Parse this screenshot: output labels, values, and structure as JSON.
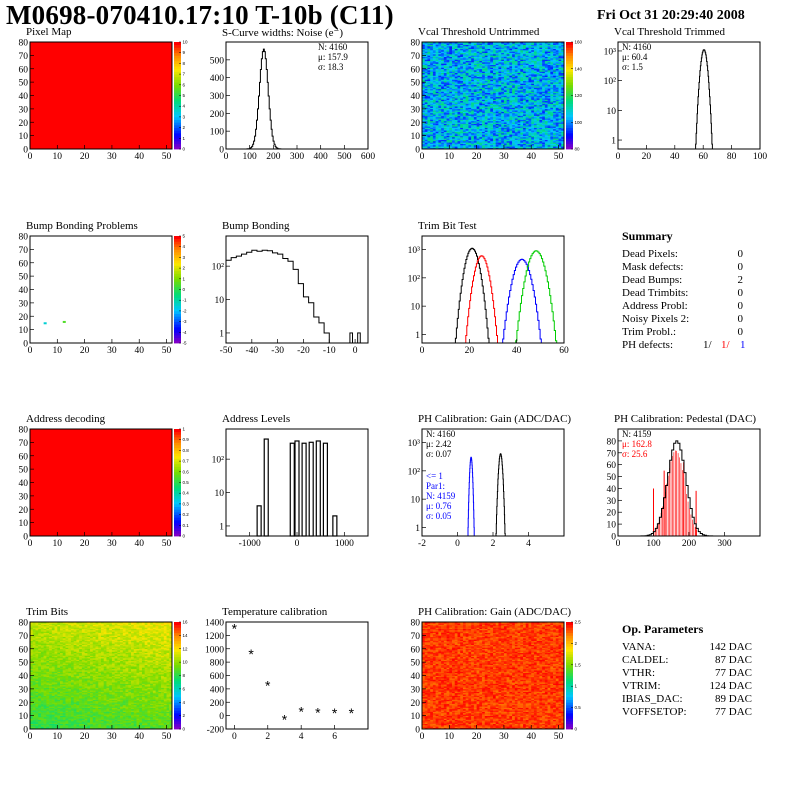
{
  "header": {
    "title": "M0698-070410.17:10 T-10b (C11)",
    "date": "Fri Oct 31 20:29:40 2008"
  },
  "colors": {
    "histogram": "#000000",
    "red": "#ff0000",
    "blue": "#0000ff",
    "green": "#00cc00"
  },
  "chart_data": [
    {
      "type": "heatmap",
      "title": "Pixel Map",
      "xlim": [
        0,
        52
      ],
      "ylim": [
        0,
        80
      ],
      "xticks": [
        "0",
        "10",
        "20",
        "30",
        "40",
        "50"
      ],
      "yticks": [
        "0",
        "10",
        "20",
        "30",
        "40",
        "50",
        "60",
        "70",
        "80"
      ],
      "palette_ticks": [
        "0",
        "1",
        "2",
        "3",
        "4",
        "5",
        "6",
        "7",
        "8",
        "9",
        "10"
      ],
      "fill": "uniform",
      "level": 10
    },
    {
      "type": "histogram",
      "title": "S-Curve widths: Noise (e⁻)",
      "xlim": [
        0,
        600
      ],
      "ylim": [
        0,
        600
      ],
      "xticks": [
        "0",
        "100",
        "200",
        "300",
        "400",
        "500",
        "600"
      ],
      "yticks": [
        "0",
        "100",
        "200",
        "300",
        "400",
        "500"
      ],
      "stats": [
        "N: 4160",
        "μ: 157.9",
        "σ: 18.3"
      ],
      "gaussian": {
        "mean": 157.9,
        "sigma": 18.3,
        "peak": 560
      }
    },
    {
      "type": "heatmap",
      "title": "Vcal Threshold Untrimmed",
      "xlim": [
        0,
        52
      ],
      "ylim": [
        0,
        80
      ],
      "xticks": [
        "0",
        "10",
        "20",
        "30",
        "40",
        "50"
      ],
      "yticks": [
        "0",
        "10",
        "20",
        "30",
        "40",
        "50",
        "60",
        "70",
        "80"
      ],
      "palette_ticks": [
        "80",
        "100",
        "120",
        "140",
        "160"
      ],
      "fill": "noise",
      "level_range": [
        0.15,
        0.45
      ]
    },
    {
      "type": "histogram",
      "title": "Vcal Threshold Trimmed",
      "log_y": true,
      "xlim": [
        0,
        100
      ],
      "ylim": [
        0.5,
        2000
      ],
      "xticks": [
        "0",
        "20",
        "40",
        "60",
        "80",
        "100"
      ],
      "yticks": [
        "1",
        "10",
        "10²",
        "10³"
      ],
      "stats": [
        "N: 4160",
        "μ: 60.4",
        "σ:  1.5"
      ],
      "gaussian": {
        "mean": 60.4,
        "sigma": 1.5,
        "peak": 1100
      }
    },
    {
      "type": "heatmap",
      "title": "Bump Bonding Problems",
      "xlim": [
        0,
        52
      ],
      "ylim": [
        0,
        80
      ],
      "xticks": [
        "0",
        "10",
        "20",
        "30",
        "40",
        "50"
      ],
      "yticks": [
        "0",
        "10",
        "20",
        "30",
        "40",
        "50",
        "60",
        "70",
        "80"
      ],
      "palette_ticks": [
        "-5",
        "-4",
        "-3",
        "-2",
        "-1",
        "0",
        "1",
        "2",
        "3",
        "4",
        "5"
      ],
      "fill": "empty",
      "cells": [
        {
          "x": 5,
          "y": 14,
          "level": 0.35
        },
        {
          "x": 12,
          "y": 15,
          "level": 0.55
        }
      ]
    },
    {
      "type": "histogram",
      "title": "Bump Bonding",
      "log_y": true,
      "xlim": [
        -50,
        5
      ],
      "ylim": [
        0.5,
        800
      ],
      "xticks": [
        "-50",
        "-40",
        "-30",
        "-20",
        "-10",
        "0"
      ],
      "yticks": [
        "1",
        "10",
        "10²"
      ],
      "bins_x": [
        -50,
        -48,
        -46,
        -44,
        -42,
        -40,
        -38,
        -36,
        -34,
        -32,
        -30,
        -28,
        -26,
        -24,
        -22,
        -20,
        -18,
        -16,
        -14,
        -12,
        -10
      ],
      "bins_y": [
        150,
        180,
        200,
        230,
        260,
        300,
        280,
        300,
        290,
        250,
        230,
        170,
        140,
        80,
        30,
        12,
        8,
        3,
        2,
        1,
        0
      ],
      "outliers": [
        {
          "x": -2,
          "y": 1
        },
        {
          "x": 1,
          "y": 1
        }
      ]
    },
    {
      "type": "histogram",
      "title": "Trim Bit Test",
      "log_y": true,
      "xlim": [
        0,
        60
      ],
      "ylim": [
        0.5,
        3000
      ],
      "xticks": [
        "0",
        "20",
        "40",
        "60"
      ],
      "yticks": [
        "1",
        "10",
        "10²",
        "10³"
      ],
      "series": [
        {
          "color": "black",
          "gaussian": {
            "mean": 21,
            "sigma": 1.8,
            "peak": 1100
          }
        },
        {
          "color": "red",
          "gaussian": {
            "mean": 25,
            "sigma": 1.8,
            "peak": 600
          }
        },
        {
          "color": "blue",
          "gaussian": {
            "mean": 42,
            "sigma": 2.2,
            "peak": 450
          }
        },
        {
          "color": "green",
          "gaussian": {
            "mean": 48,
            "sigma": 2.2,
            "peak": 900
          }
        }
      ]
    },
    {
      "type": "heatmap",
      "title": "Address decoding",
      "xlim": [
        0,
        52
      ],
      "ylim": [
        0,
        80
      ],
      "xticks": [
        "0",
        "10",
        "20",
        "30",
        "40",
        "50"
      ],
      "yticks": [
        "0",
        "10",
        "20",
        "30",
        "40",
        "50",
        "60",
        "70",
        "80"
      ],
      "palette_ticks": [
        "0",
        "0.1",
        "0.2",
        "0.3",
        "0.4",
        "0.5",
        "0.6",
        "0.7",
        "0.8",
        "0.9",
        "1"
      ],
      "fill": "uniform",
      "level": 10
    },
    {
      "type": "histogram",
      "title": "Address Levels",
      "log_y": true,
      "xlim": [
        -1500,
        1500
      ],
      "ylim": [
        0.5,
        800
      ],
      "xticks": [
        "-1000",
        "0",
        "1000"
      ],
      "yticks": [
        "1",
        "10",
        "10²"
      ],
      "spikes": [
        {
          "x": -800,
          "y": 4
        },
        {
          "x": -650,
          "y": 400
        },
        {
          "x": -100,
          "y": 300
        },
        {
          "x": 0,
          "y": 350
        },
        {
          "x": 150,
          "y": 300
        },
        {
          "x": 300,
          "y": 320
        },
        {
          "x": 450,
          "y": 350
        },
        {
          "x": 600,
          "y": 300
        },
        {
          "x": 800,
          "y": 2
        }
      ]
    },
    {
      "type": "histogram",
      "title": "PH Calibration: Gain (ADC/DAC)",
      "log_y": true,
      "xlim": [
        -2,
        6
      ],
      "ylim": [
        0.5,
        3000
      ],
      "xticks": [
        "-2",
        "0",
        "2",
        "4"
      ],
      "yticks": [
        "1",
        "10",
        "10²",
        "10³"
      ],
      "stats": [
        "N: 4160",
        "μ: 2.42",
        "σ: 0.07"
      ],
      "stats2": [
        "<= 1",
        "Par1:",
        "N: 4159",
        "μ: 0.76",
        "σ: 0.05"
      ],
      "series": [
        {
          "color": "black",
          "gaussian": {
            "mean": 2.42,
            "sigma": 0.07,
            "peak": 400
          }
        },
        {
          "color": "blue",
          "gaussian": {
            "mean": 0.76,
            "sigma": 0.05,
            "peak": 300
          }
        }
      ]
    },
    {
      "type": "histogram",
      "title": "PH Calibration: Pedestal (DAC)",
      "xlim": [
        0,
        400
      ],
      "ylim": [
        0,
        90
      ],
      "xticks": [
        "0",
        "100",
        "200",
        "300"
      ],
      "yticks": [
        "0",
        "10",
        "20",
        "30",
        "40",
        "50",
        "60",
        "70",
        "80"
      ],
      "stats": [
        "N: 4159",
        "μ: 162.8",
        "σ: 25.6"
      ],
      "gaussian": {
        "mean": 162.8,
        "sigma": 25.6,
        "peak": 80
      },
      "red_lines": [
        {
          "x": 100,
          "y": 40
        },
        {
          "x": 130,
          "y": 55
        },
        {
          "x": 185,
          "y": 62
        },
        {
          "x": 220,
          "y": 38
        }
      ]
    },
    {
      "type": "heatmap",
      "title": "Trim Bits",
      "xlim": [
        0,
        52
      ],
      "ylim": [
        0,
        80
      ],
      "xticks": [
        "0",
        "10",
        "20",
        "30",
        "40",
        "50"
      ],
      "yticks": [
        "0",
        "10",
        "20",
        "30",
        "40",
        "50",
        "60",
        "70",
        "80"
      ],
      "palette_ticks": [
        "0",
        "2",
        "4",
        "6",
        "8",
        "10",
        "12",
        "14",
        "16"
      ],
      "fill": "gradient",
      "level_range": [
        0.45,
        0.75
      ]
    },
    {
      "type": "scatter",
      "title": "Temperature calibration",
      "xlim": [
        -0.5,
        8
      ],
      "ylim": [
        -200,
        1400
      ],
      "xticks": [
        "0",
        "2",
        "4",
        "6"
      ],
      "yticks": [
        "-200",
        "0",
        "200",
        "400",
        "600",
        "800",
        "1000",
        "1200",
        "1400"
      ],
      "x": [
        0,
        1,
        2,
        3,
        4,
        5,
        6,
        7
      ],
      "y": [
        1300,
        920,
        450,
        -60,
        60,
        50,
        40,
        40
      ]
    },
    {
      "type": "heatmap",
      "title": "PH Calibration: Gain (ADC/DAC)",
      "xlim": [
        0,
        52
      ],
      "ylim": [
        0,
        80
      ],
      "xticks": [
        "0",
        "10",
        "20",
        "30",
        "40",
        "50"
      ],
      "yticks": [
        "0",
        "10",
        "20",
        "30",
        "40",
        "50",
        "60",
        "70",
        "80"
      ],
      "palette_ticks": [
        "0",
        "0.5",
        "1",
        "1.5",
        "2",
        "2.5"
      ],
      "fill": "noise",
      "level_range": [
        0.9,
        1.0
      ]
    }
  ],
  "summary": {
    "title": "Summary",
    "rows": [
      {
        "label": "Dead Pixels:",
        "value": "0"
      },
      {
        "label": "Mask defects:",
        "value": "0"
      },
      {
        "label": "Dead Bumps:",
        "value": "2"
      },
      {
        "label": "Dead Trimbits:",
        "value": "0"
      },
      {
        "label": "Address Probl:",
        "value": "0"
      },
      {
        "label": "Noisy Pixels 2:",
        "value": "0"
      },
      {
        "label": "Trim Probl.:",
        "value": "0"
      }
    ],
    "ph_defects": {
      "label": "PH defects:",
      "v1": "1/",
      "v2": "1/",
      "v3": "1"
    }
  },
  "op_params": {
    "title": "Op. Parameters",
    "rows": [
      {
        "label": "VANA:",
        "value": "142 DAC"
      },
      {
        "label": "CALDEL:",
        "value": "87 DAC"
      },
      {
        "label": "VTHR:",
        "value": "77 DAC"
      },
      {
        "label": "VTRIM:",
        "value": "124 DAC"
      },
      {
        "label": "IBIAS_DAC:",
        "value": "89 DAC"
      },
      {
        "label": "VOFFSETOP:",
        "value": "77 DAC"
      }
    ]
  }
}
